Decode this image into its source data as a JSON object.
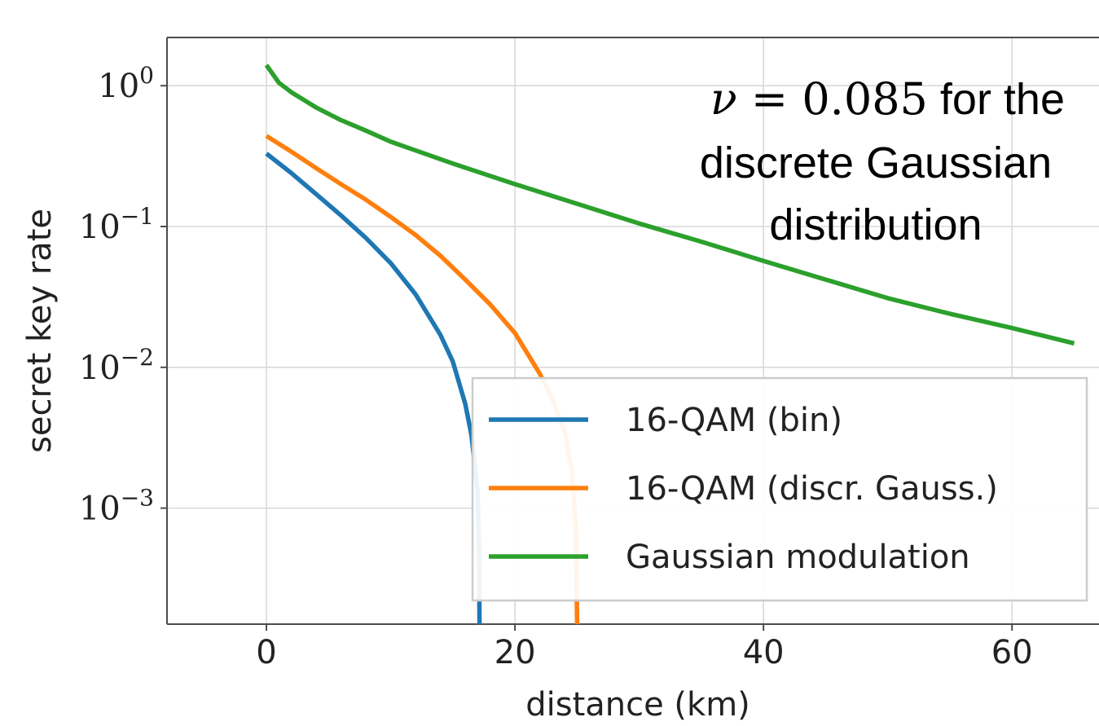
{
  "chart_data": {
    "type": "line",
    "xlabel": "distance (km)",
    "ylabel": "secret key rate",
    "yscale": "log",
    "xlim": [
      -8,
      67
    ],
    "ylim": [
      0.00015,
      2.2
    ],
    "xticks": [
      0,
      20,
      40,
      60
    ],
    "xtick_labels": [
      "0",
      "20",
      "40",
      "60"
    ],
    "yticks": [
      1,
      0.1,
      0.01,
      0.001
    ],
    "ytick_labels": [
      {
        "base": "10",
        "exp": "0"
      },
      {
        "base": "10",
        "exp": "−1"
      },
      {
        "base": "10",
        "exp": "−2"
      },
      {
        "base": "10",
        "exp": "−3"
      }
    ],
    "grid": true,
    "legend_position": "lower-right",
    "series": [
      {
        "name": "16-QAM (bin)",
        "color": "#1f77b4",
        "points": [
          [
            0,
            0.33
          ],
          [
            2,
            0.24
          ],
          [
            4,
            0.17
          ],
          [
            6,
            0.12
          ],
          [
            8,
            0.083
          ],
          [
            10,
            0.055
          ],
          [
            12,
            0.033
          ],
          [
            14,
            0.017
          ],
          [
            15,
            0.011
          ],
          [
            16,
            0.0055
          ],
          [
            16.5,
            0.0033
          ],
          [
            17,
            0.0013
          ],
          [
            17.1,
            0.0006
          ],
          [
            17.15,
            0.00015
          ]
        ]
      },
      {
        "name": "16-QAM (discr. Gauss.)",
        "color": "#ff7f0e",
        "points": [
          [
            0,
            0.44
          ],
          [
            2,
            0.34
          ],
          [
            4,
            0.26
          ],
          [
            6,
            0.2
          ],
          [
            8,
            0.155
          ],
          [
            10,
            0.117
          ],
          [
            12,
            0.087
          ],
          [
            14,
            0.062
          ],
          [
            16,
            0.042
          ],
          [
            18,
            0.028
          ],
          [
            20,
            0.0175
          ],
          [
            22,
            0.009
          ],
          [
            23,
            0.006
          ],
          [
            24,
            0.0035
          ],
          [
            24.6,
            0.0018
          ],
          [
            24.9,
            0.0007
          ],
          [
            25,
            0.00015
          ]
        ]
      },
      {
        "name": "Gaussian modulation",
        "color": "#2ca02c",
        "points": [
          [
            0,
            1.4
          ],
          [
            1,
            1.05
          ],
          [
            2,
            0.9
          ],
          [
            4,
            0.7
          ],
          [
            6,
            0.57
          ],
          [
            8,
            0.48
          ],
          [
            10,
            0.4
          ],
          [
            15,
            0.28
          ],
          [
            20,
            0.2
          ],
          [
            25,
            0.145
          ],
          [
            30,
            0.105
          ],
          [
            35,
            0.078
          ],
          [
            40,
            0.057
          ],
          [
            45,
            0.042
          ],
          [
            50,
            0.031
          ],
          [
            55,
            0.024
          ],
          [
            60,
            0.019
          ],
          [
            65,
            0.0148
          ]
        ]
      }
    ],
    "annotation": {
      "symbol": "ν",
      "equals": " = ",
      "value": "0.085",
      "line1_rest": " for the",
      "line2": "discrete Gaussian",
      "line3": "distribution"
    }
  }
}
